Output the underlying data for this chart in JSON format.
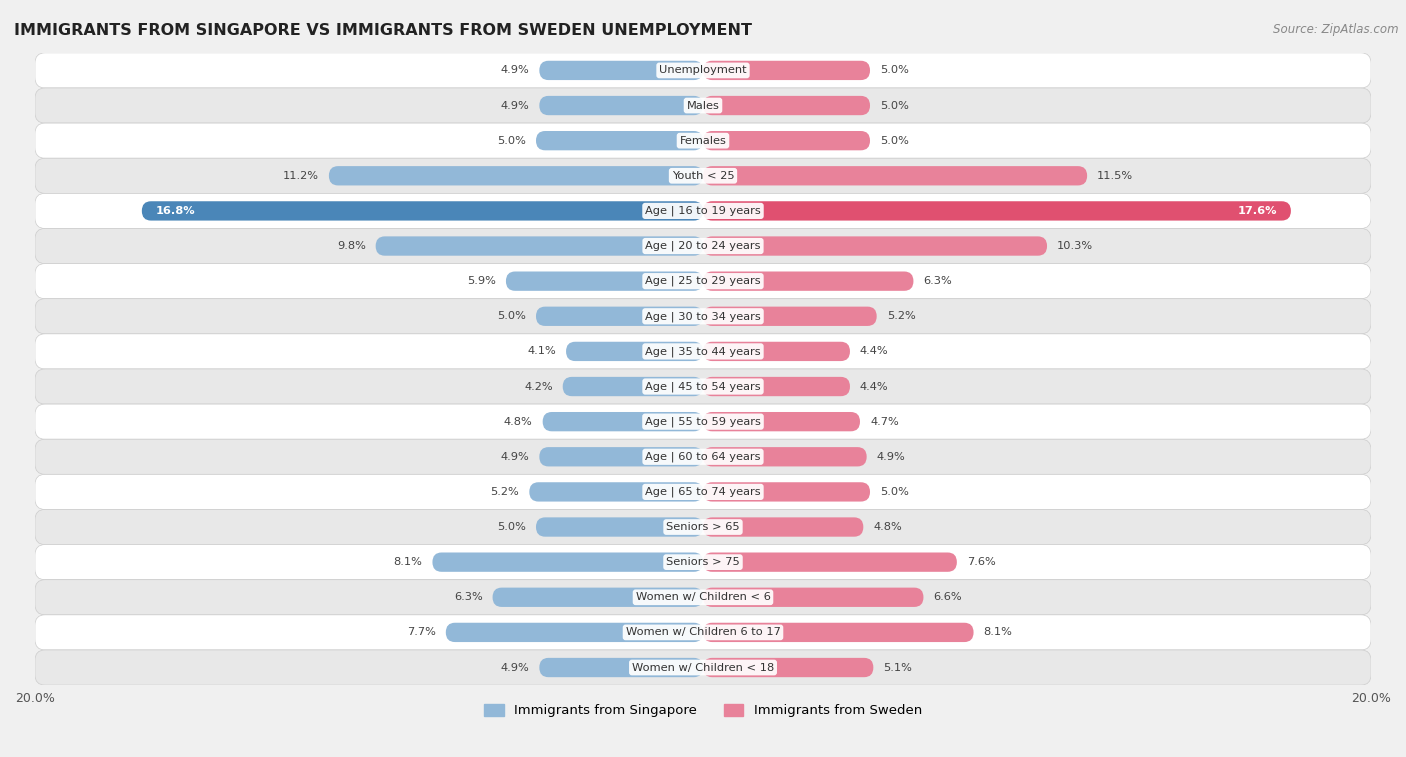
{
  "title": "IMMIGRANTS FROM SINGAPORE VS IMMIGRANTS FROM SWEDEN UNEMPLOYMENT",
  "source": "Source: ZipAtlas.com",
  "categories": [
    "Unemployment",
    "Males",
    "Females",
    "Youth < 25",
    "Age | 16 to 19 years",
    "Age | 20 to 24 years",
    "Age | 25 to 29 years",
    "Age | 30 to 34 years",
    "Age | 35 to 44 years",
    "Age | 45 to 54 years",
    "Age | 55 to 59 years",
    "Age | 60 to 64 years",
    "Age | 65 to 74 years",
    "Seniors > 65",
    "Seniors > 75",
    "Women w/ Children < 6",
    "Women w/ Children 6 to 17",
    "Women w/ Children < 18"
  ],
  "singapore_values": [
    4.9,
    4.9,
    5.0,
    11.2,
    16.8,
    9.8,
    5.9,
    5.0,
    4.1,
    4.2,
    4.8,
    4.9,
    5.2,
    5.0,
    8.1,
    6.3,
    7.7,
    4.9
  ],
  "sweden_values": [
    5.0,
    5.0,
    5.0,
    11.5,
    17.6,
    10.3,
    6.3,
    5.2,
    4.4,
    4.4,
    4.7,
    4.9,
    5.0,
    4.8,
    7.6,
    6.6,
    8.1,
    5.1
  ],
  "singapore_color": "#92b8d8",
  "sweden_color": "#e8829a",
  "singapore_highlight_color": "#4a86b8",
  "sweden_highlight_color": "#e05070",
  "background_color": "#f0f0f0",
  "row_light": "#ffffff",
  "row_dark": "#e8e8e8",
  "axis_limit": 20.0,
  "bar_height": 0.55,
  "legend_singapore": "Immigrants from Singapore",
  "legend_sweden": "Immigrants from Sweden"
}
